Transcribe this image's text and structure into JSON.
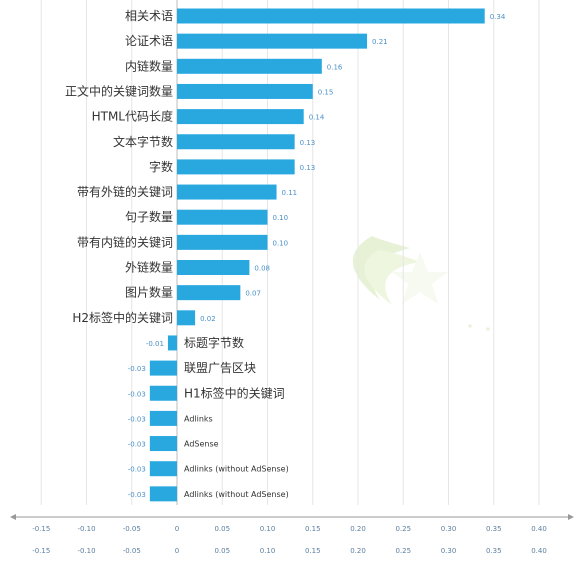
{
  "chart_data": {
    "type": "bar",
    "orientation": "horizontal",
    "categories": [
      "相关术语",
      "论证术语",
      "内链数量",
      "正文中的关键词数量",
      "HTML代码长度",
      "文本字节数",
      "字数",
      "带有外链的关键词",
      "句子数量",
      "带有内链的关键词",
      "外链数量",
      "图片数量",
      "H2标签中的关键词",
      "标题字节数",
      "联盟广告区块",
      "H1标签中的关键词",
      "Adlinks",
      "AdSense",
      "Adlinks (without AdSense)",
      "Adlinks (without AdSense)"
    ],
    "values": [
      0.34,
      0.21,
      0.16,
      0.15,
      0.14,
      0.13,
      0.13,
      0.11,
      0.1,
      0.1,
      0.08,
      0.07,
      0.02,
      -0.01,
      -0.03,
      -0.03,
      -0.03,
      -0.03,
      -0.03,
      -0.03
    ],
    "value_labels": [
      "0.34",
      "0.21",
      "0.16",
      "0.15",
      "0.14",
      "0.13",
      "0.13",
      "0.11",
      "0.10",
      "0.10",
      "0.08",
      "0.07",
      "0.02",
      "-0.01",
      "-0.03",
      "-0.03",
      "-0.03",
      "-0.03",
      "-0.03",
      "-0.03"
    ],
    "xticks": [
      -0.15,
      -0.1,
      -0.05,
      0,
      0.05,
      0.1,
      0.15,
      0.2,
      0.25,
      0.3,
      0.35,
      0.4
    ],
    "xtick_labels": [
      "-0.15",
      "-0.10",
      "-0.05",
      "0",
      "0.05",
      "0.10",
      "0.15",
      "0.20",
      "0.25",
      "0.30",
      "0.35",
      "0.40"
    ],
    "xlim": [
      -0.15,
      0.4
    ],
    "grid": "vertical",
    "bar_color": "#29a8e0",
    "axis_color": "#999999",
    "grid_color": "#e6e6e6",
    "value_label_color": "#4a90c8",
    "tick_label_color": "#5b7fa0",
    "small_label_categories": [
      "Adlinks",
      "AdSense",
      "Adlinks (without AdSense)"
    ],
    "watermark": "green-swoosh-star-logo"
  }
}
